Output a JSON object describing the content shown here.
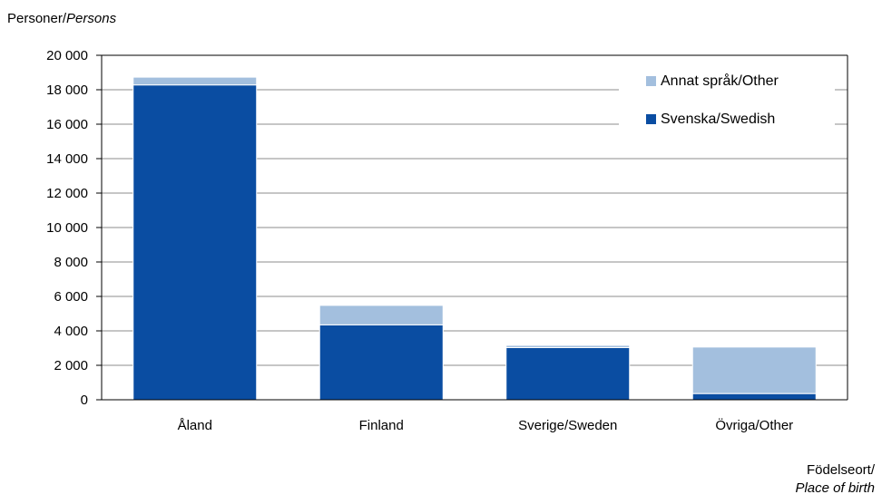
{
  "chart_data": {
    "type": "bar",
    "stacked": true,
    "ylabel": {
      "main": "Personer/",
      "italic": "Persons"
    },
    "xlabel": {
      "main": "Födelseort/",
      "italic": "Place of birth"
    },
    "categories": [
      "Åland",
      "Finland",
      "Sverige/Sweden",
      "Övriga/Other"
    ],
    "series": [
      {
        "name": "Svenska/Swedish",
        "color": "#0a4da2",
        "values": [
          18280,
          4350,
          3030,
          360
        ]
      },
      {
        "name": "Annat språk/Other",
        "color": "#a3bfde",
        "values": [
          450,
          1130,
          130,
          2700
        ]
      }
    ],
    "ylim": [
      0,
      20000
    ],
    "yticks": [
      0,
      2000,
      4000,
      6000,
      8000,
      10000,
      12000,
      14000,
      16000,
      18000,
      20000
    ],
    "ytick_labels": [
      "0",
      "2 000",
      "4 000",
      "6 000",
      "8 000",
      "10 000",
      "12 000",
      "14 000",
      "16 000",
      "18 000",
      "20 000"
    ],
    "grid": true,
    "legend_position": "top-right"
  }
}
